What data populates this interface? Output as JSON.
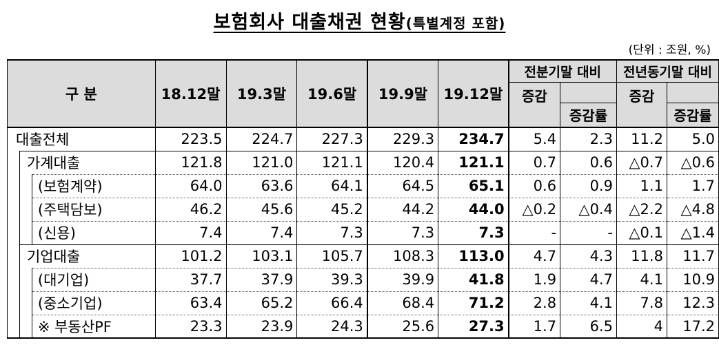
{
  "title": "보험회사 대출채권 현황",
  "title_sub": "(특별계정 포함)",
  "unit": "(단위 : 조원, %)",
  "header": {
    "category": "구 분",
    "periods": [
      "18.12말",
      "19.3말",
      "19.6말",
      "19.9말",
      "19.12말"
    ],
    "group_qoq": "전분기말 대비",
    "group_yoy": "전년동기말 대비",
    "change": "증감",
    "change_rate": "증감률"
  },
  "rows": [
    {
      "label": "대출전체",
      "values": [
        "223.5",
        "224.7",
        "227.3",
        "229.3",
        "234.7",
        "5.4",
        "2.3",
        "11.2",
        "5.0"
      ]
    },
    {
      "label": "가계대출",
      "values": [
        "121.8",
        "121.0",
        "121.1",
        "120.4",
        "121.1",
        "0.7",
        "0.6",
        "△0.7",
        "△0.6"
      ]
    },
    {
      "label": "(보험계약)",
      "values": [
        "64.0",
        "63.6",
        "64.1",
        "64.5",
        "65.1",
        "0.6",
        "0.9",
        "1.1",
        "1.7"
      ]
    },
    {
      "label": "(주택담보)",
      "values": [
        "46.2",
        "45.6",
        "45.2",
        "44.2",
        "44.0",
        "△0.2",
        "△0.4",
        "△2.2",
        "△4.8"
      ]
    },
    {
      "label": "(신용)",
      "values": [
        "7.4",
        "7.4",
        "7.3",
        "7.3",
        "7.3",
        "-",
        "-",
        "△0.1",
        "△1.4"
      ]
    },
    {
      "label": "기업대출",
      "values": [
        "101.2",
        "103.1",
        "105.7",
        "108.3",
        "113.0",
        "4.7",
        "4.3",
        "11.8",
        "11.7"
      ]
    },
    {
      "label": "(대기업)",
      "values": [
        "37.7",
        "37.9",
        "39.3",
        "39.9",
        "41.8",
        "1.9",
        "4.7",
        "4.1",
        "10.9"
      ]
    },
    {
      "label": "(중소기업)",
      "values": [
        "63.4",
        "65.2",
        "66.4",
        "68.4",
        "71.2",
        "2.8",
        "4.1",
        "7.8",
        "12.3"
      ]
    },
    {
      "label": "※ 부동산PF",
      "values": [
        "23.3",
        "23.9",
        "24.3",
        "25.6",
        "27.3",
        "1.7",
        "6.5",
        "4",
        "17.2"
      ]
    }
  ]
}
